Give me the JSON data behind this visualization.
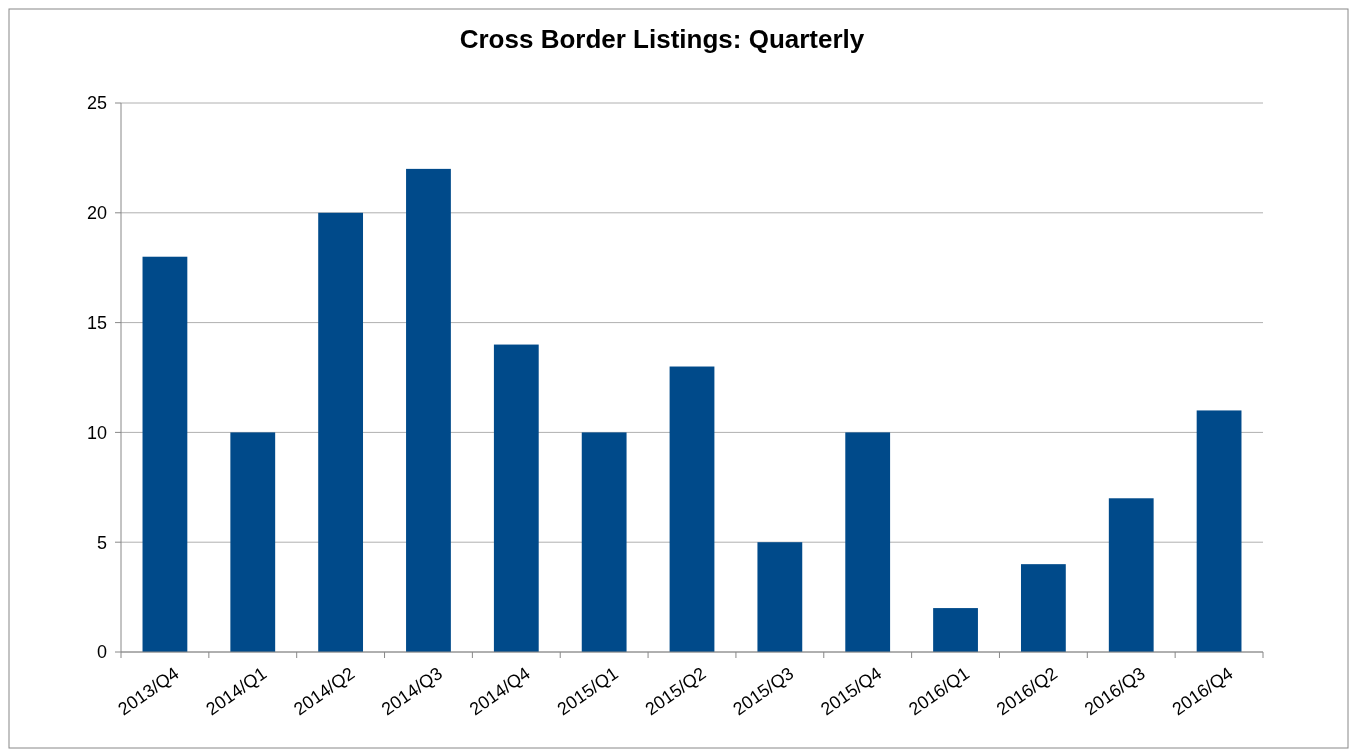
{
  "chart_data": {
    "type": "bar",
    "title": "Cross Border Listings: Quarterly",
    "categories": [
      "2013/Q4",
      "2014/Q1",
      "2014/Q2",
      "2014/Q3",
      "2014/Q4",
      "2015/Q1",
      "2015/Q2",
      "2015/Q3",
      "2015/Q4",
      "2016/Q1",
      "2016/Q2",
      "2016/Q3",
      "2016/Q4"
    ],
    "values": [
      18,
      10,
      20,
      22,
      14,
      10,
      13,
      5,
      10,
      2,
      4,
      7,
      11
    ],
    "color": "#004a8a",
    "ylim": [
      0,
      25
    ],
    "yticks": [
      0,
      5,
      10,
      15,
      20,
      25
    ],
    "grid": "y"
  }
}
